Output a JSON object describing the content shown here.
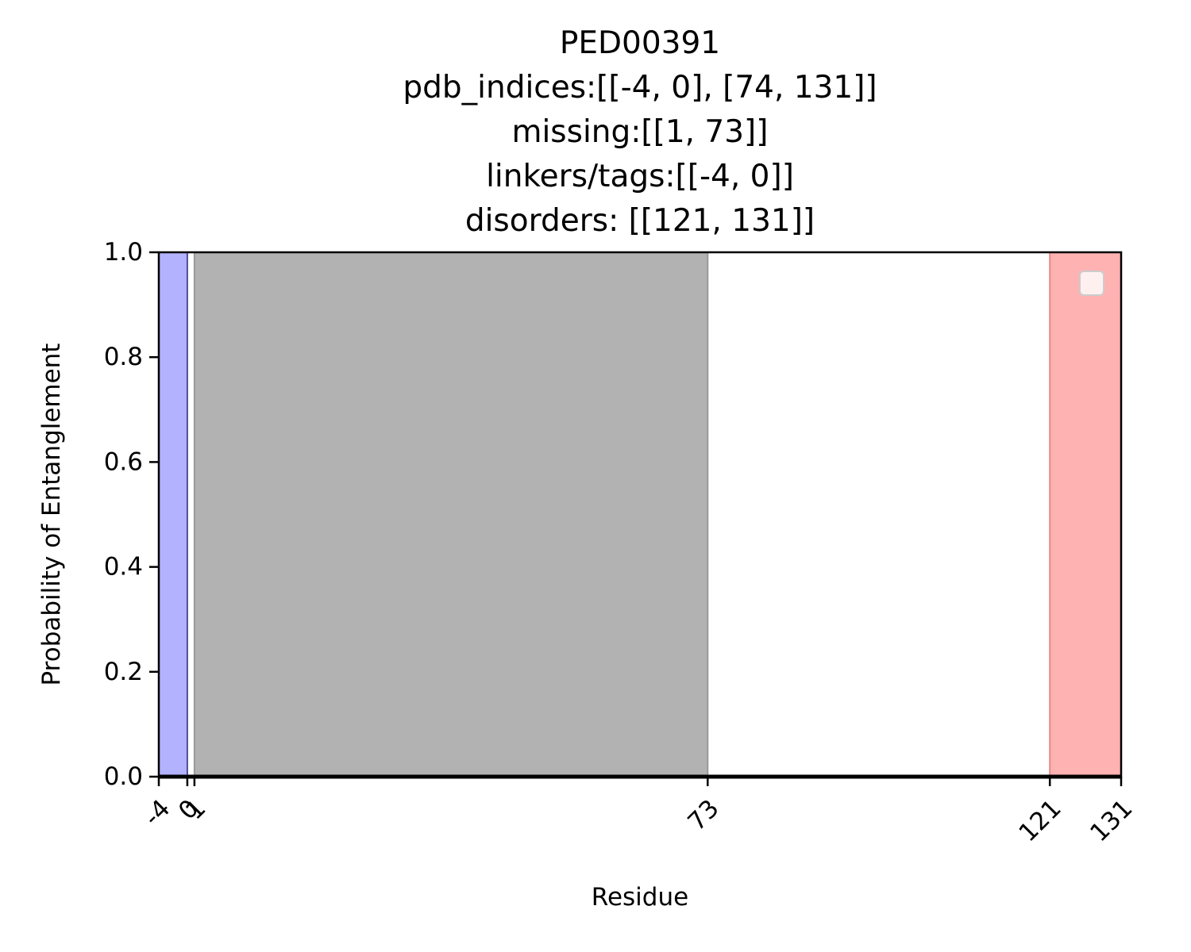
{
  "chart_data": {
    "type": "area",
    "title_lines": [
      "PED00391",
      "pdb_indices:[[-4, 0], [74, 131]]",
      "missing:[[1, 73]]",
      "linkers/tags:[[-4, 0]]",
      "disorders: [[121, 131]]"
    ],
    "xlabel": "Residue",
    "ylabel": "Probability of Entanglement",
    "xlim": [
      -4,
      131
    ],
    "ylim": [
      0,
      1
    ],
    "xticks": [
      -4,
      0,
      1,
      73,
      121,
      131
    ],
    "xtick_labels": [
      "-4",
      "0",
      "1",
      "73",
      "121",
      "131"
    ],
    "yticks": [
      0,
      0.2,
      0.4,
      0.6,
      0.8,
      1.0
    ],
    "ytick_labels": [
      "0.0",
      "0.2",
      "0.4",
      "0.6",
      "0.8",
      "1.0"
    ],
    "regions": [
      {
        "label": "linkers/tags",
        "x0": -4,
        "x1": 0,
        "color": "#b2b2ff",
        "edge": "#4d4d99"
      },
      {
        "label": "missing",
        "x0": 1,
        "x1": 73,
        "color": "#b2b2b2",
        "edge": "#999999"
      },
      {
        "label": "disorders",
        "x0": 121,
        "x1": 131,
        "color": "#ffb2b2",
        "edge": "#e88888"
      }
    ],
    "series": [
      {
        "x": [
          -4,
          131
        ],
        "y": [
          0,
          0
        ],
        "color": "#000000"
      }
    ],
    "grid": false,
    "legend": "top-right"
  }
}
